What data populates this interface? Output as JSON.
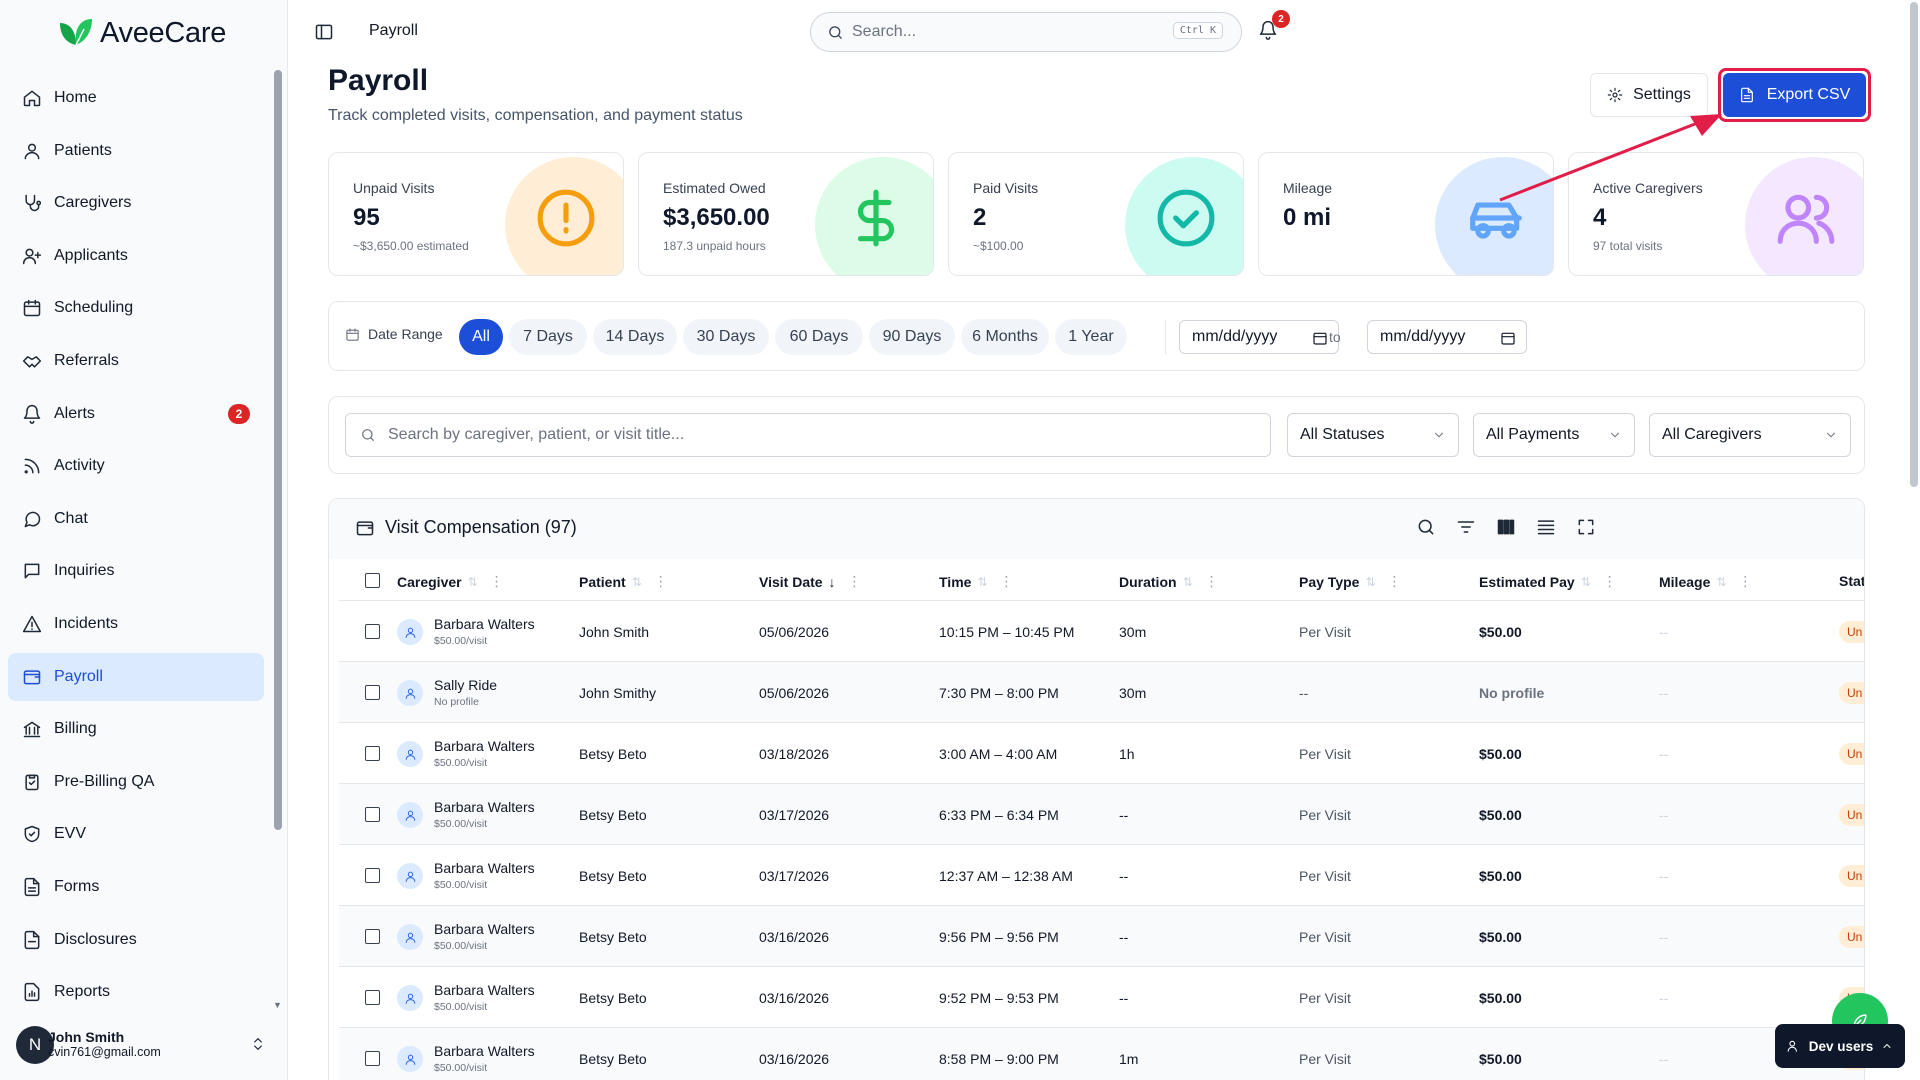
{
  "app": {
    "name": "AveeCare"
  },
  "colors": {
    "brand": "#1d4ed8",
    "brand_green": "#16a34a",
    "danger": "#dc2626",
    "highlight_ring": "#e11d48"
  },
  "sidebar": {
    "items": [
      {
        "label": "Home",
        "icon": "home-icon"
      },
      {
        "label": "Patients",
        "icon": "user-icon"
      },
      {
        "label": "Caregivers",
        "icon": "stethoscope-icon"
      },
      {
        "label": "Applicants",
        "icon": "user-plus-icon"
      },
      {
        "label": "Scheduling",
        "icon": "calendar-icon"
      },
      {
        "label": "Referrals",
        "icon": "handshake-icon"
      },
      {
        "label": "Alerts",
        "icon": "bell-icon",
        "badge": "2"
      },
      {
        "label": "Activity",
        "icon": "rss-icon"
      },
      {
        "label": "Chat",
        "icon": "chat-icon"
      },
      {
        "label": "Inquiries",
        "icon": "message-square-icon"
      },
      {
        "label": "Incidents",
        "icon": "warning-icon"
      },
      {
        "label": "Payroll",
        "icon": "wallet-icon",
        "active": true
      },
      {
        "label": "Billing",
        "icon": "bank-icon"
      },
      {
        "label": "Pre-Billing QA",
        "icon": "clipboard-check-icon"
      },
      {
        "label": "EVV",
        "icon": "shield-check-icon"
      },
      {
        "label": "Forms",
        "icon": "file-text-icon"
      },
      {
        "label": "Disclosures",
        "icon": "file-icon"
      },
      {
        "label": "Reports",
        "icon": "report-icon"
      }
    ],
    "user": {
      "initial": "N",
      "name": "John Smith",
      "email": "cvin761@gmail.com"
    }
  },
  "header": {
    "breadcrumb": "Payroll",
    "search_placeholder": "Search...",
    "search_shortcut": "Ctrl K",
    "notification_count": "2"
  },
  "page": {
    "title": "Payroll",
    "subtitle": "Track completed visits, compensation, and payment status",
    "settings_label": "Settings",
    "export_label": "Export CSV"
  },
  "stats": [
    {
      "label": "Unpaid Visits",
      "value": "95",
      "sub": "~$3,650.00 estimated",
      "icon": "alert-circle-icon",
      "color": "#f59e0b",
      "bg": "#ffedd5"
    },
    {
      "label": "Estimated Owed",
      "value": "$3,650.00",
      "sub": "187.3 unpaid hours",
      "icon": "dollar-icon",
      "color": "#22c55e",
      "bg": "#dcfce7"
    },
    {
      "label": "Paid Visits",
      "value": "2",
      "sub": "~$100.00",
      "icon": "check-circle-icon",
      "color": "#14b8a6",
      "bg": "#ccfbf1"
    },
    {
      "label": "Mileage",
      "value": "0 mi",
      "sub": "",
      "icon": "car-icon",
      "color": "#60a5fa",
      "bg": "#dbeafe"
    },
    {
      "label": "Active Caregivers",
      "value": "4",
      "sub": "97 total visits",
      "icon": "users-icon",
      "color": "#c084fc",
      "bg": "#f3e8ff"
    }
  ],
  "date_range": {
    "label": "Date Range",
    "options": [
      "All",
      "7 Days",
      "14 Days",
      "30 Days",
      "60 Days",
      "90 Days",
      "6 Months",
      "1 Year"
    ],
    "selected": "All",
    "from_placeholder": "mm/dd/yyyy",
    "to_label": "to",
    "to_placeholder": "mm/dd/yyyy"
  },
  "filters": {
    "search_placeholder": "Search by caregiver, patient, or visit title...",
    "status": "All Statuses",
    "payment": "All Payments",
    "caregiver": "All Caregivers"
  },
  "table": {
    "title": "Visit Compensation (97)",
    "columns": [
      "Caregiver",
      "Patient",
      "Visit Date",
      "Time",
      "Duration",
      "Pay Type",
      "Estimated Pay",
      "Mileage",
      "Stat"
    ],
    "rows": [
      {
        "caregiver": "Barbara Walters",
        "rate": "$50.00/visit",
        "patient": "John Smith",
        "date": "05/06/2026",
        "time": "10:15 PM – 10:45 PM",
        "duration": "30m",
        "pay_type": "Per Visit",
        "pay": "$50.00",
        "mileage": "--",
        "status": "Un"
      },
      {
        "caregiver": "Sally Ride",
        "rate": "No profile",
        "patient": "John Smithy",
        "date": "05/06/2026",
        "time": "7:30 PM – 8:00 PM",
        "duration": "30m",
        "pay_type": "--",
        "pay": "No profile",
        "mileage": "--",
        "status": "Un"
      },
      {
        "caregiver": "Barbara Walters",
        "rate": "$50.00/visit",
        "patient": "Betsy Beto",
        "date": "03/18/2026",
        "time": "3:00 AM – 4:00 AM",
        "duration": "1h",
        "pay_type": "Per Visit",
        "pay": "$50.00",
        "mileage": "--",
        "status": "Un"
      },
      {
        "caregiver": "Barbara Walters",
        "rate": "$50.00/visit",
        "patient": "Betsy Beto",
        "date": "03/17/2026",
        "time": "6:33 PM – 6:34 PM",
        "duration": "--",
        "pay_type": "Per Visit",
        "pay": "$50.00",
        "mileage": "--",
        "status": "Un"
      },
      {
        "caregiver": "Barbara Walters",
        "rate": "$50.00/visit",
        "patient": "Betsy Beto",
        "date": "03/17/2026",
        "time": "12:37 AM – 12:38 AM",
        "duration": "--",
        "pay_type": "Per Visit",
        "pay": "$50.00",
        "mileage": "--",
        "status": "Un"
      },
      {
        "caregiver": "Barbara Walters",
        "rate": "$50.00/visit",
        "patient": "Betsy Beto",
        "date": "03/16/2026",
        "time": "9:56 PM – 9:56 PM",
        "duration": "--",
        "pay_type": "Per Visit",
        "pay": "$50.00",
        "mileage": "--",
        "status": "Un"
      },
      {
        "caregiver": "Barbara Walters",
        "rate": "$50.00/visit",
        "patient": "Betsy Beto",
        "date": "03/16/2026",
        "time": "9:52 PM – 9:53 PM",
        "duration": "--",
        "pay_type": "Per Visit",
        "pay": "$50.00",
        "mileage": "--",
        "status": "Un"
      },
      {
        "caregiver": "Barbara Walters",
        "rate": "$50.00/visit",
        "patient": "Betsy Beto",
        "date": "03/16/2026",
        "time": "8:58 PM – 9:00 PM",
        "duration": "1m",
        "pay_type": "Per Visit",
        "pay": "$50.00",
        "mileage": "--",
        "status": "Un"
      }
    ]
  },
  "floating": {
    "dev_users_label": "Dev users"
  }
}
